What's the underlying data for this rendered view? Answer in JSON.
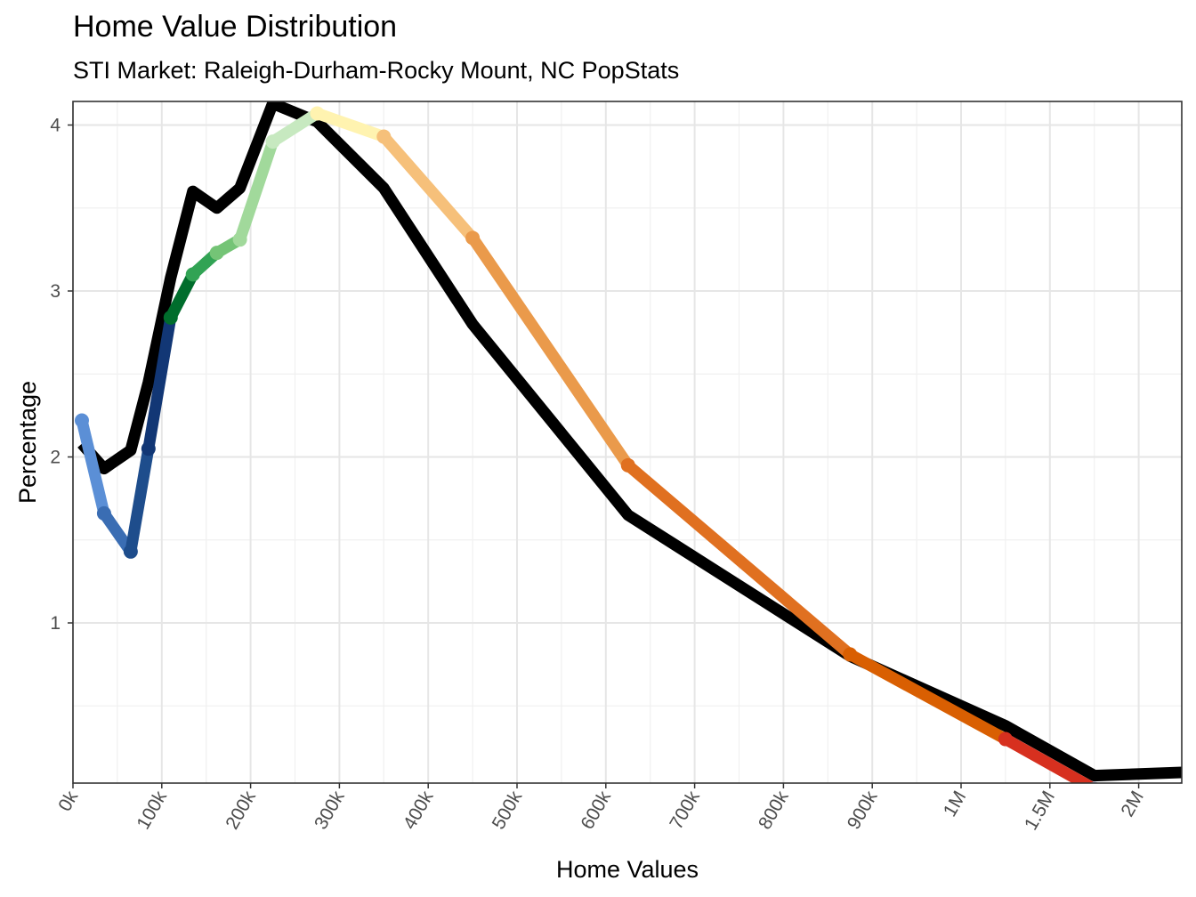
{
  "chart_data": {
    "type": "line",
    "title": "Home Value Distribution",
    "subtitle": "STI Market: Raleigh-Durham-Rocky Mount, NC PopStats",
    "xlabel": "Home Values",
    "ylabel": "Percentage",
    "x_tick_labels": [
      "0k",
      "100k",
      "200k",
      "300k",
      "400k",
      "500k",
      "600k",
      "700k",
      "800k",
      "900k",
      "1M",
      "1.5M",
      "2M"
    ],
    "y_tick_labels": [
      "1",
      "2",
      "3",
      "4"
    ],
    "y_ticks": [
      1,
      2,
      3,
      4
    ],
    "ylim": [
      0.05,
      4.15
    ],
    "x_axis_note": "categorical bins: 0k..1M spaced 100k apart, then 1.5M and 2M",
    "grid": true,
    "series": [
      {
        "color": "#000000",
        "points": [
          {
            "x": "10k",
            "y": 2.08
          },
          {
            "x": "35k",
            "y": 1.93
          },
          {
            "x": "65k",
            "y": 2.04
          },
          {
            "x": "85k",
            "y": 2.45
          },
          {
            "x": "110k",
            "y": 3.08
          },
          {
            "x": "135k",
            "y": 3.6
          },
          {
            "x": "162k",
            "y": 3.5
          },
          {
            "x": "188k",
            "y": 3.62
          },
          {
            "x": "225k",
            "y": 4.13
          },
          {
            "x": "275k",
            "y": 4.02
          },
          {
            "x": "350k",
            "y": 3.62
          },
          {
            "x": "450k",
            "y": 2.8
          },
          {
            "x": "625k",
            "y": 1.65
          },
          {
            "x": "875k",
            "y": 0.8
          },
          {
            "x": "1.25M",
            "y": 0.38
          },
          {
            "x": "1.75M",
            "y": 0.08
          },
          {
            "x": "2.25M",
            "y": 0.1
          }
        ]
      },
      {
        "color_segments": [
          "#5b8fd6",
          "#3a6db3",
          "#1e4d8c",
          "#123775",
          "#006d2c",
          "#31a354",
          "#74c476",
          "#a1d99b",
          "#c7e9c0",
          "#fff3b0",
          "#f6c07a",
          "#ea9a4b",
          "#e07020",
          "#d95f02",
          "#d7301f",
          "#9e9ac8",
          "#6a51a3"
        ],
        "points": [
          {
            "x": "10k",
            "y": 2.22
          },
          {
            "x": "35k",
            "y": 1.66
          },
          {
            "x": "65k",
            "y": 1.43
          },
          {
            "x": "85k",
            "y": 2.05
          },
          {
            "x": "110k",
            "y": 2.84
          },
          {
            "x": "135k",
            "y": 3.1
          },
          {
            "x": "162k",
            "y": 3.23
          },
          {
            "x": "188k",
            "y": 3.31
          },
          {
            "x": "225k",
            "y": 3.9
          },
          {
            "x": "275k",
            "y": 4.07
          },
          {
            "x": "350k",
            "y": 3.93
          },
          {
            "x": "450k",
            "y": 3.32
          },
          {
            "x": "625k",
            "y": 1.95
          },
          {
            "x": "875k",
            "y": 0.81
          },
          {
            "x": "1.25M",
            "y": 0.3
          },
          {
            "x": "1.75M",
            "y": 0.0
          },
          {
            "x": "2.25M",
            "y": 0.0
          }
        ]
      }
    ]
  }
}
